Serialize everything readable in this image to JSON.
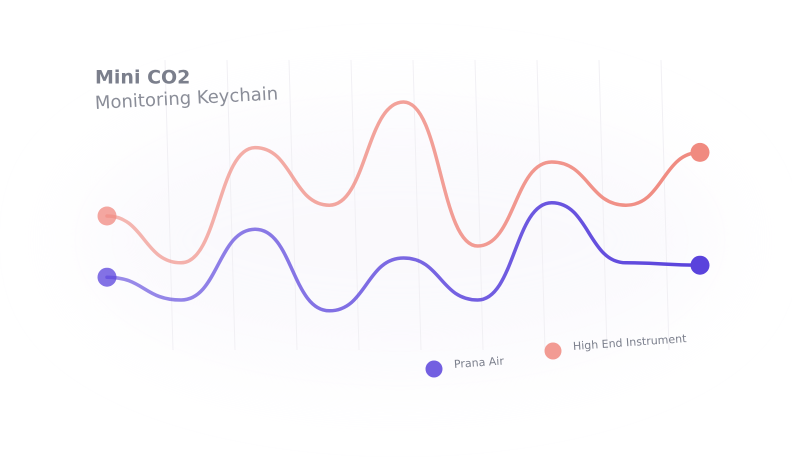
{
  "chart_data": {
    "type": "line",
    "title": "Mini CO2",
    "subtitle": "Monitoring Keychain",
    "categories": [
      null,
      null,
      null,
      null,
      null,
      null,
      null,
      null,
      null
    ],
    "series": [
      {
        "name": "Prana Air",
        "color": "#5a43dc",
        "values": [
          22,
          12.5,
          42,
          8,
          30,
          12.5,
          53,
          28,
          27
        ]
      },
      {
        "name": "High End Instrument",
        "color": "#f08a80",
        "values": [
          47.5,
          28,
          76,
          52,
          95,
          35,
          70,
          52,
          74
        ]
      }
    ],
    "ylim": [
      0,
      100
    ],
    "grid": true
  }
}
